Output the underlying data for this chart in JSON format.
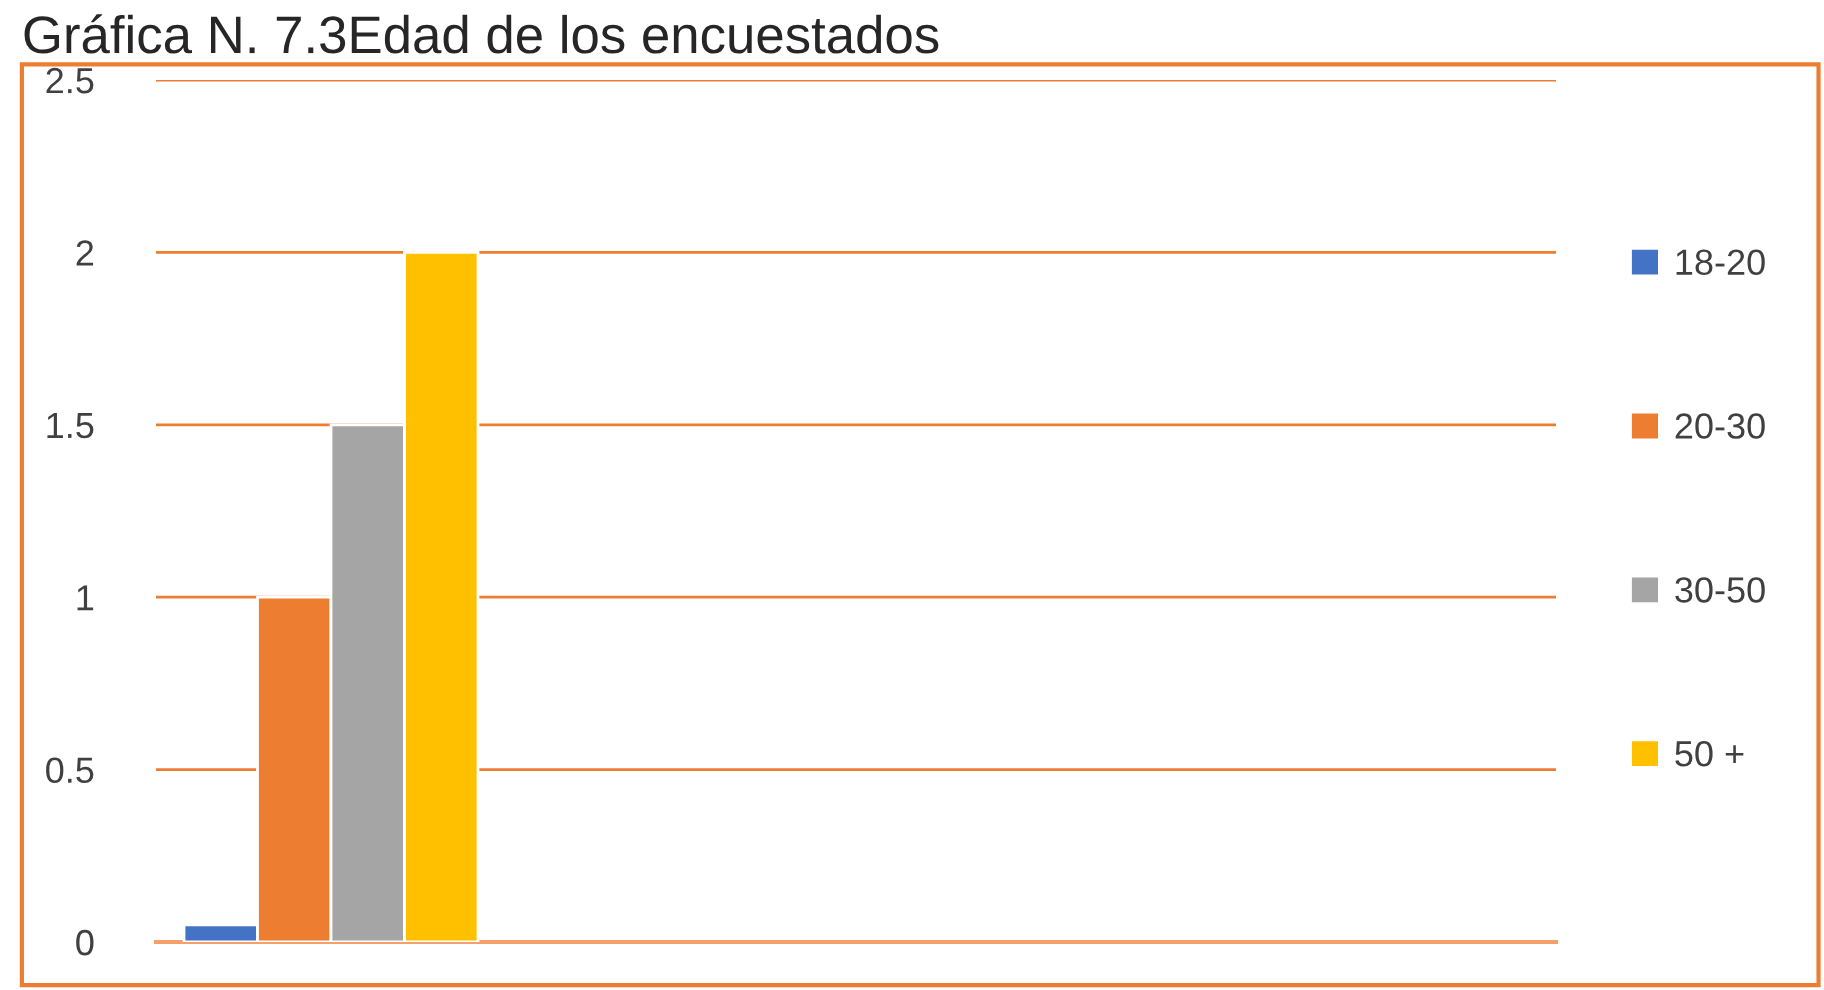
{
  "chart_data": {
    "type": "bar",
    "title": "Gráfica N. 7.3Edad de los encuestados",
    "categories": [
      null,
      null,
      null,
      null
    ],
    "series": [
      {
        "name": "18-20",
        "color": "#4472c4",
        "values": [
          0.05,
          null,
          null,
          null
        ]
      },
      {
        "name": "20-30",
        "color": "#ed7d31",
        "values": [
          1,
          null,
          null,
          null
        ]
      },
      {
        "name": "30-50",
        "color": "#a5a5a5",
        "values": [
          1.5,
          null,
          null,
          null
        ]
      },
      {
        "name": "50 +",
        "color": "#ffc000",
        "values": [
          2,
          null,
          null,
          null
        ]
      }
    ],
    "ylim": [
      0,
      2.5
    ],
    "yticks": [
      0,
      0.5,
      1,
      1.5,
      2,
      2.5
    ],
    "grid": "y",
    "legend": "right"
  }
}
